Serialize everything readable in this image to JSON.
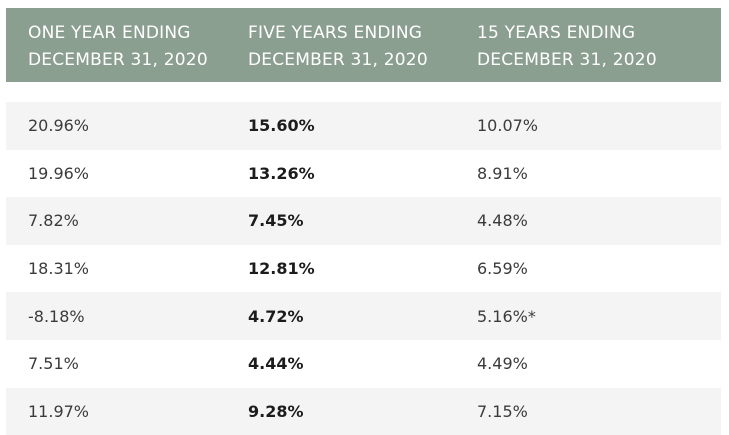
{
  "table": {
    "headers": [
      "ONE YEAR ENDING\nDECEMBER 31, 2020",
      "FIVE YEARS ENDING\nDECEMBER 31, 2020",
      "15 YEARS ENDING\nDECEMBER 31, 2020"
    ],
    "rows": [
      [
        "20.96%",
        "15.60%",
        "10.07%"
      ],
      [
        "19.96%",
        "13.26%",
        "8.91%"
      ],
      [
        "7.82%",
        "7.45%",
        "4.48%"
      ],
      [
        "18.31%",
        "12.81%",
        "6.59%"
      ],
      [
        "-8.18%",
        "4.72%",
        "5.16%*"
      ],
      [
        "7.51%",
        "4.44%",
        "4.49%"
      ],
      [
        "11.97%",
        "9.28%",
        "7.15%"
      ]
    ],
    "colors": {
      "header_bg": "#8b9f91",
      "header_text": "#ffffff",
      "row_shade": "#f4f4f4",
      "text": "#3b3b3b"
    }
  }
}
